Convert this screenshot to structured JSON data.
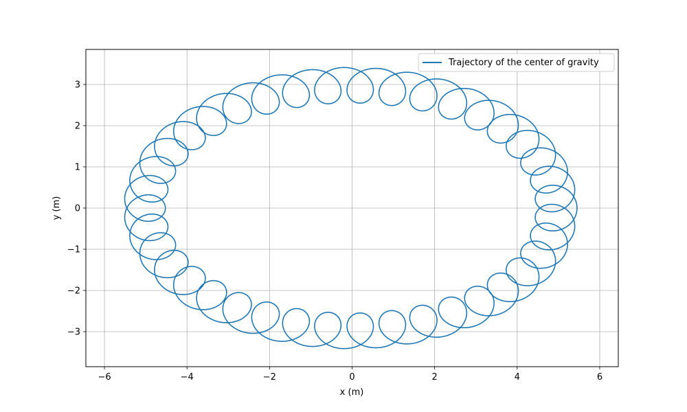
{
  "chart_data": {
    "type": "line",
    "title": "",
    "xlabel": "x (m)",
    "ylabel": "y (m)",
    "xlim": [
      -6.45,
      6.45
    ],
    "ylim": [
      -3.85,
      3.85
    ],
    "xticks": [
      -6,
      -4,
      -2,
      0,
      2,
      4,
      6
    ],
    "yticks": [
      -3,
      -2,
      -1,
      0,
      1,
      2,
      3
    ],
    "xtick_labels": [
      "−6",
      "−4",
      "−2",
      "0",
      "2",
      "4",
      "6"
    ],
    "ytick_labels": [
      "−3",
      "−2",
      "−1",
      "0",
      "1",
      "2",
      "3"
    ],
    "grid": true,
    "legend_position": "top-right",
    "series": [
      {
        "name": "Trajectory of the center of gravity",
        "color": "#1f77b4",
        "description_params": {
          "main_ellipse_a": 4.95,
          "main_ellipse_b": 2.95,
          "loop_radius_x": 0.5,
          "loop_radius_y": 0.32,
          "loops_per_orbit": 40
        }
      }
    ]
  }
}
